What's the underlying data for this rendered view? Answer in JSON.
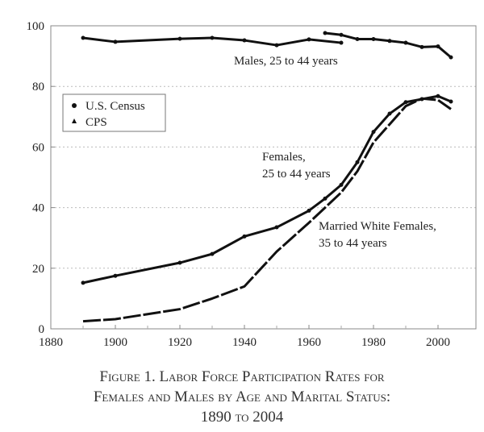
{
  "chart_data": {
    "type": "line",
    "title": "Figure 1. Labor Force Participation Rates for Females and Males by Age and Marital Status: 1890 to 2004",
    "xlim": [
      1880,
      2008
    ],
    "ylim": [
      0,
      100
    ],
    "xticks": [
      1880,
      1900,
      1920,
      1940,
      1960,
      1980,
      2000
    ],
    "yticks": [
      0,
      20,
      40,
      60,
      80,
      100
    ],
    "grid": "horizontal dotted",
    "legend": {
      "placement": "top-left",
      "entries": [
        {
          "marker": "circle",
          "label": "U.S. Census"
        },
        {
          "marker": "triangle",
          "label": "CPS"
        }
      ]
    },
    "annotations": [
      "Males, 25 to 44 years",
      "Females,",
      "25 to 44 years",
      "Married White Females,",
      "35 to 44 years"
    ],
    "series": [
      {
        "name": "Males, 25 to 44 years (U.S. Census)",
        "style": "solid",
        "x": [
          1890,
          1900,
          1920,
          1930,
          1940,
          1950,
          1960,
          1970
        ],
        "y": [
          96,
          94.7,
          95.7,
          96,
          95.2,
          93.6,
          95.5,
          94.4
        ]
      },
      {
        "name": "Males, 25 to 44 years (CPS)",
        "style": "solid",
        "x": [
          1965,
          1970,
          1975,
          1980,
          1985,
          1990,
          1995,
          2000,
          2004
        ],
        "y": [
          97.6,
          97,
          95.6,
          95.6,
          95,
          94.4,
          93,
          93.2,
          89.6
        ]
      },
      {
        "name": "Females, 25 to 44 years",
        "style": "solid",
        "x": [
          1890,
          1900,
          1920,
          1930,
          1940,
          1950,
          1960,
          1965,
          1970,
          1975,
          1980,
          1985,
          1990,
          1995,
          2000,
          2004
        ],
        "y": [
          15.2,
          17.5,
          21.8,
          24.7,
          30.5,
          33.5,
          39,
          43,
          47.5,
          55,
          65,
          71,
          74.8,
          75.8,
          76.8,
          75
        ]
      },
      {
        "name": "Married White Females, 35 to 44 years",
        "style": "dashed",
        "x": [
          1890,
          1900,
          1920,
          1930,
          1940,
          1950,
          1960,
          1965,
          1970,
          1975,
          1980,
          1985,
          1990,
          1995,
          2000,
          2004
        ],
        "y": [
          2.5,
          3.2,
          6.5,
          10,
          14,
          25.5,
          35,
          40,
          45,
          52,
          61.5,
          67.5,
          73.5,
          76,
          75.5,
          72.5
        ]
      }
    ]
  },
  "caption": {
    "line1": "Figure 1. Labor Force Participation Rates for",
    "line2": "Females and Males by Age and Marital Status:",
    "line3": "1890 to 2004"
  }
}
